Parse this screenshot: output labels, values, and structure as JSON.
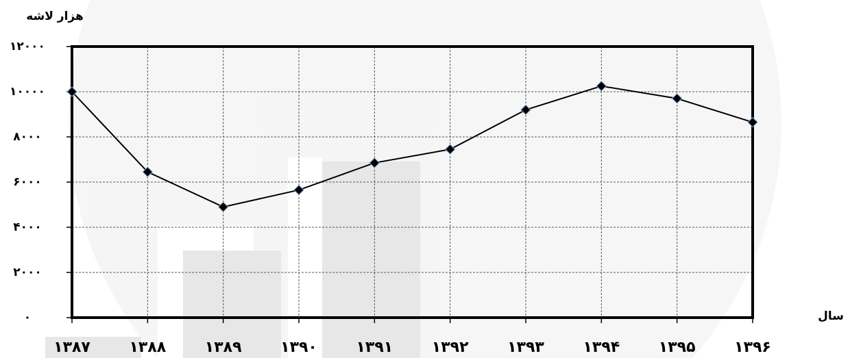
{
  "chart_data": {
    "type": "line",
    "y_axis_label": "هزار لاشه",
    "x_axis_label": "سال",
    "categories": [
      "۱۳۸۷",
      "۱۳۸۸",
      "۱۳۸۹",
      "۱۳۹۰",
      "۱۳۹۱",
      "۱۳۹۲",
      "۱۳۹۳",
      "۱۳۹۴",
      "۱۳۹۵",
      "۱۳۹۶"
    ],
    "values": [
      10000,
      6450,
      4900,
      5650,
      6850,
      7450,
      9200,
      10250,
      9700,
      8650
    ],
    "color": "#000000",
    "ylim": [
      0,
      12000
    ],
    "yticks": [
      {
        "value": 0,
        "label": "۰"
      },
      {
        "value": 2000,
        "label": "۲۰۰۰"
      },
      {
        "value": 4000,
        "label": "۴۰۰۰"
      },
      {
        "value": 6000,
        "label": "۶۰۰۰"
      },
      {
        "value": 8000,
        "label": "۸۰۰۰"
      },
      {
        "value": 10000,
        "label": "۱۰۰۰۰"
      },
      {
        "value": 12000,
        "label": "۱۲۰۰۰"
      }
    ],
    "grid": true
  }
}
